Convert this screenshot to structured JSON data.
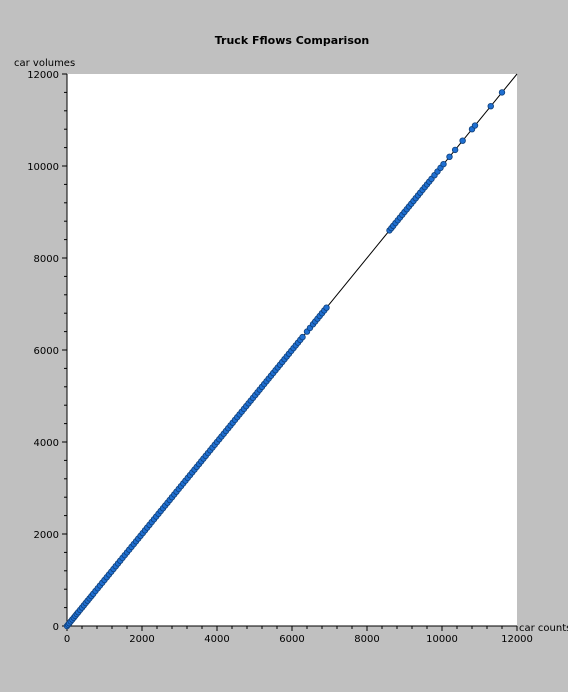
{
  "chart_data": {
    "type": "scatter",
    "title": "Truck Fflows  Comparison",
    "xlabel": "car counts",
    "ylabel": "car volumes",
    "xlim": [
      0,
      12000
    ],
    "ylim": [
      0,
      12000
    ],
    "x_ticks": [
      "0",
      "2000",
      "4000",
      "6000",
      "8000",
      "10000",
      "12000"
    ],
    "y_ticks": [
      "0",
      "2000",
      "4000",
      "6000",
      "8000",
      "10000",
      "12000"
    ],
    "grid": false,
    "reference_line": {
      "from": [
        0,
        0
      ],
      "to": [
        12000,
        12000
      ],
      "color": "#000000"
    },
    "marker_color": "#1f6fd1",
    "marker_edge_color": "#0e3f7a",
    "points": [
      [
        0,
        0
      ],
      [
        30,
        30
      ],
      [
        60,
        60
      ],
      [
        100,
        100
      ],
      [
        140,
        140
      ],
      [
        180,
        180
      ],
      [
        220,
        220
      ],
      [
        260,
        260
      ],
      [
        300,
        300
      ],
      [
        350,
        350
      ],
      [
        400,
        400
      ],
      [
        450,
        450
      ],
      [
        500,
        500
      ],
      [
        550,
        550
      ],
      [
        600,
        600
      ],
      [
        650,
        650
      ],
      [
        700,
        700
      ],
      [
        760,
        760
      ],
      [
        820,
        820
      ],
      [
        880,
        880
      ],
      [
        940,
        940
      ],
      [
        1000,
        1000
      ],
      [
        1060,
        1060
      ],
      [
        1120,
        1120
      ],
      [
        1180,
        1180
      ],
      [
        1240,
        1240
      ],
      [
        1300,
        1300
      ],
      [
        1360,
        1360
      ],
      [
        1420,
        1420
      ],
      [
        1480,
        1480
      ],
      [
        1540,
        1540
      ],
      [
        1600,
        1600
      ],
      [
        1660,
        1660
      ],
      [
        1720,
        1720
      ],
      [
        1780,
        1780
      ],
      [
        1840,
        1840
      ],
      [
        1900,
        1900
      ],
      [
        1960,
        1960
      ],
      [
        2020,
        2020
      ],
      [
        2080,
        2080
      ],
      [
        2140,
        2140
      ],
      [
        2200,
        2200
      ],
      [
        2260,
        2260
      ],
      [
        2320,
        2320
      ],
      [
        2380,
        2380
      ],
      [
        2440,
        2440
      ],
      [
        2500,
        2500
      ],
      [
        2560,
        2560
      ],
      [
        2620,
        2620
      ],
      [
        2680,
        2680
      ],
      [
        2740,
        2740
      ],
      [
        2800,
        2800
      ],
      [
        2860,
        2860
      ],
      [
        2920,
        2920
      ],
      [
        2980,
        2980
      ],
      [
        3040,
        3040
      ],
      [
        3100,
        3100
      ],
      [
        3160,
        3160
      ],
      [
        3220,
        3220
      ],
      [
        3280,
        3280
      ],
      [
        3340,
        3340
      ],
      [
        3400,
        3400
      ],
      [
        3460,
        3460
      ],
      [
        3520,
        3520
      ],
      [
        3580,
        3580
      ],
      [
        3640,
        3640
      ],
      [
        3700,
        3700
      ],
      [
        3760,
        3760
      ],
      [
        3820,
        3820
      ],
      [
        3880,
        3880
      ],
      [
        3940,
        3940
      ],
      [
        4000,
        4000
      ],
      [
        4060,
        4060
      ],
      [
        4120,
        4120
      ],
      [
        4180,
        4180
      ],
      [
        4240,
        4240
      ],
      [
        4300,
        4300
      ],
      [
        4360,
        4360
      ],
      [
        4420,
        4420
      ],
      [
        4480,
        4480
      ],
      [
        4540,
        4540
      ],
      [
        4600,
        4600
      ],
      [
        4660,
        4660
      ],
      [
        4720,
        4720
      ],
      [
        4780,
        4780
      ],
      [
        4840,
        4840
      ],
      [
        4900,
        4900
      ],
      [
        4960,
        4960
      ],
      [
        5020,
        5020
      ],
      [
        5080,
        5080
      ],
      [
        5140,
        5140
      ],
      [
        5200,
        5200
      ],
      [
        5260,
        5260
      ],
      [
        5320,
        5320
      ],
      [
        5380,
        5380
      ],
      [
        5440,
        5440
      ],
      [
        5500,
        5500
      ],
      [
        5560,
        5560
      ],
      [
        5620,
        5620
      ],
      [
        5680,
        5680
      ],
      [
        5740,
        5740
      ],
      [
        5800,
        5800
      ],
      [
        5860,
        5860
      ],
      [
        5920,
        5920
      ],
      [
        5980,
        5980
      ],
      [
        6040,
        6040
      ],
      [
        6100,
        6100
      ],
      [
        6160,
        6160
      ],
      [
        6220,
        6220
      ],
      [
        6280,
        6280
      ],
      [
        6400,
        6400
      ],
      [
        6480,
        6480
      ],
      [
        6560,
        6560
      ],
      [
        6620,
        6620
      ],
      [
        6680,
        6680
      ],
      [
        6740,
        6740
      ],
      [
        6800,
        6800
      ],
      [
        6860,
        6860
      ],
      [
        6920,
        6920
      ],
      [
        8600,
        8600
      ],
      [
        8650,
        8650
      ],
      [
        8700,
        8700
      ],
      [
        8760,
        8760
      ],
      [
        8820,
        8820
      ],
      [
        8880,
        8880
      ],
      [
        8940,
        8940
      ],
      [
        9000,
        9000
      ],
      [
        9060,
        9060
      ],
      [
        9120,
        9120
      ],
      [
        9180,
        9180
      ],
      [
        9240,
        9240
      ],
      [
        9300,
        9300
      ],
      [
        9360,
        9360
      ],
      [
        9420,
        9420
      ],
      [
        9480,
        9480
      ],
      [
        9540,
        9540
      ],
      [
        9600,
        9600
      ],
      [
        9660,
        9660
      ],
      [
        9720,
        9720
      ],
      [
        9800,
        9800
      ],
      [
        9880,
        9880
      ],
      [
        9960,
        9960
      ],
      [
        10040,
        10040
      ],
      [
        10200,
        10200
      ],
      [
        10350,
        10350
      ],
      [
        10550,
        10550
      ],
      [
        10800,
        10800
      ],
      [
        10880,
        10880
      ],
      [
        11300,
        11300
      ],
      [
        11600,
        11600
      ]
    ]
  }
}
